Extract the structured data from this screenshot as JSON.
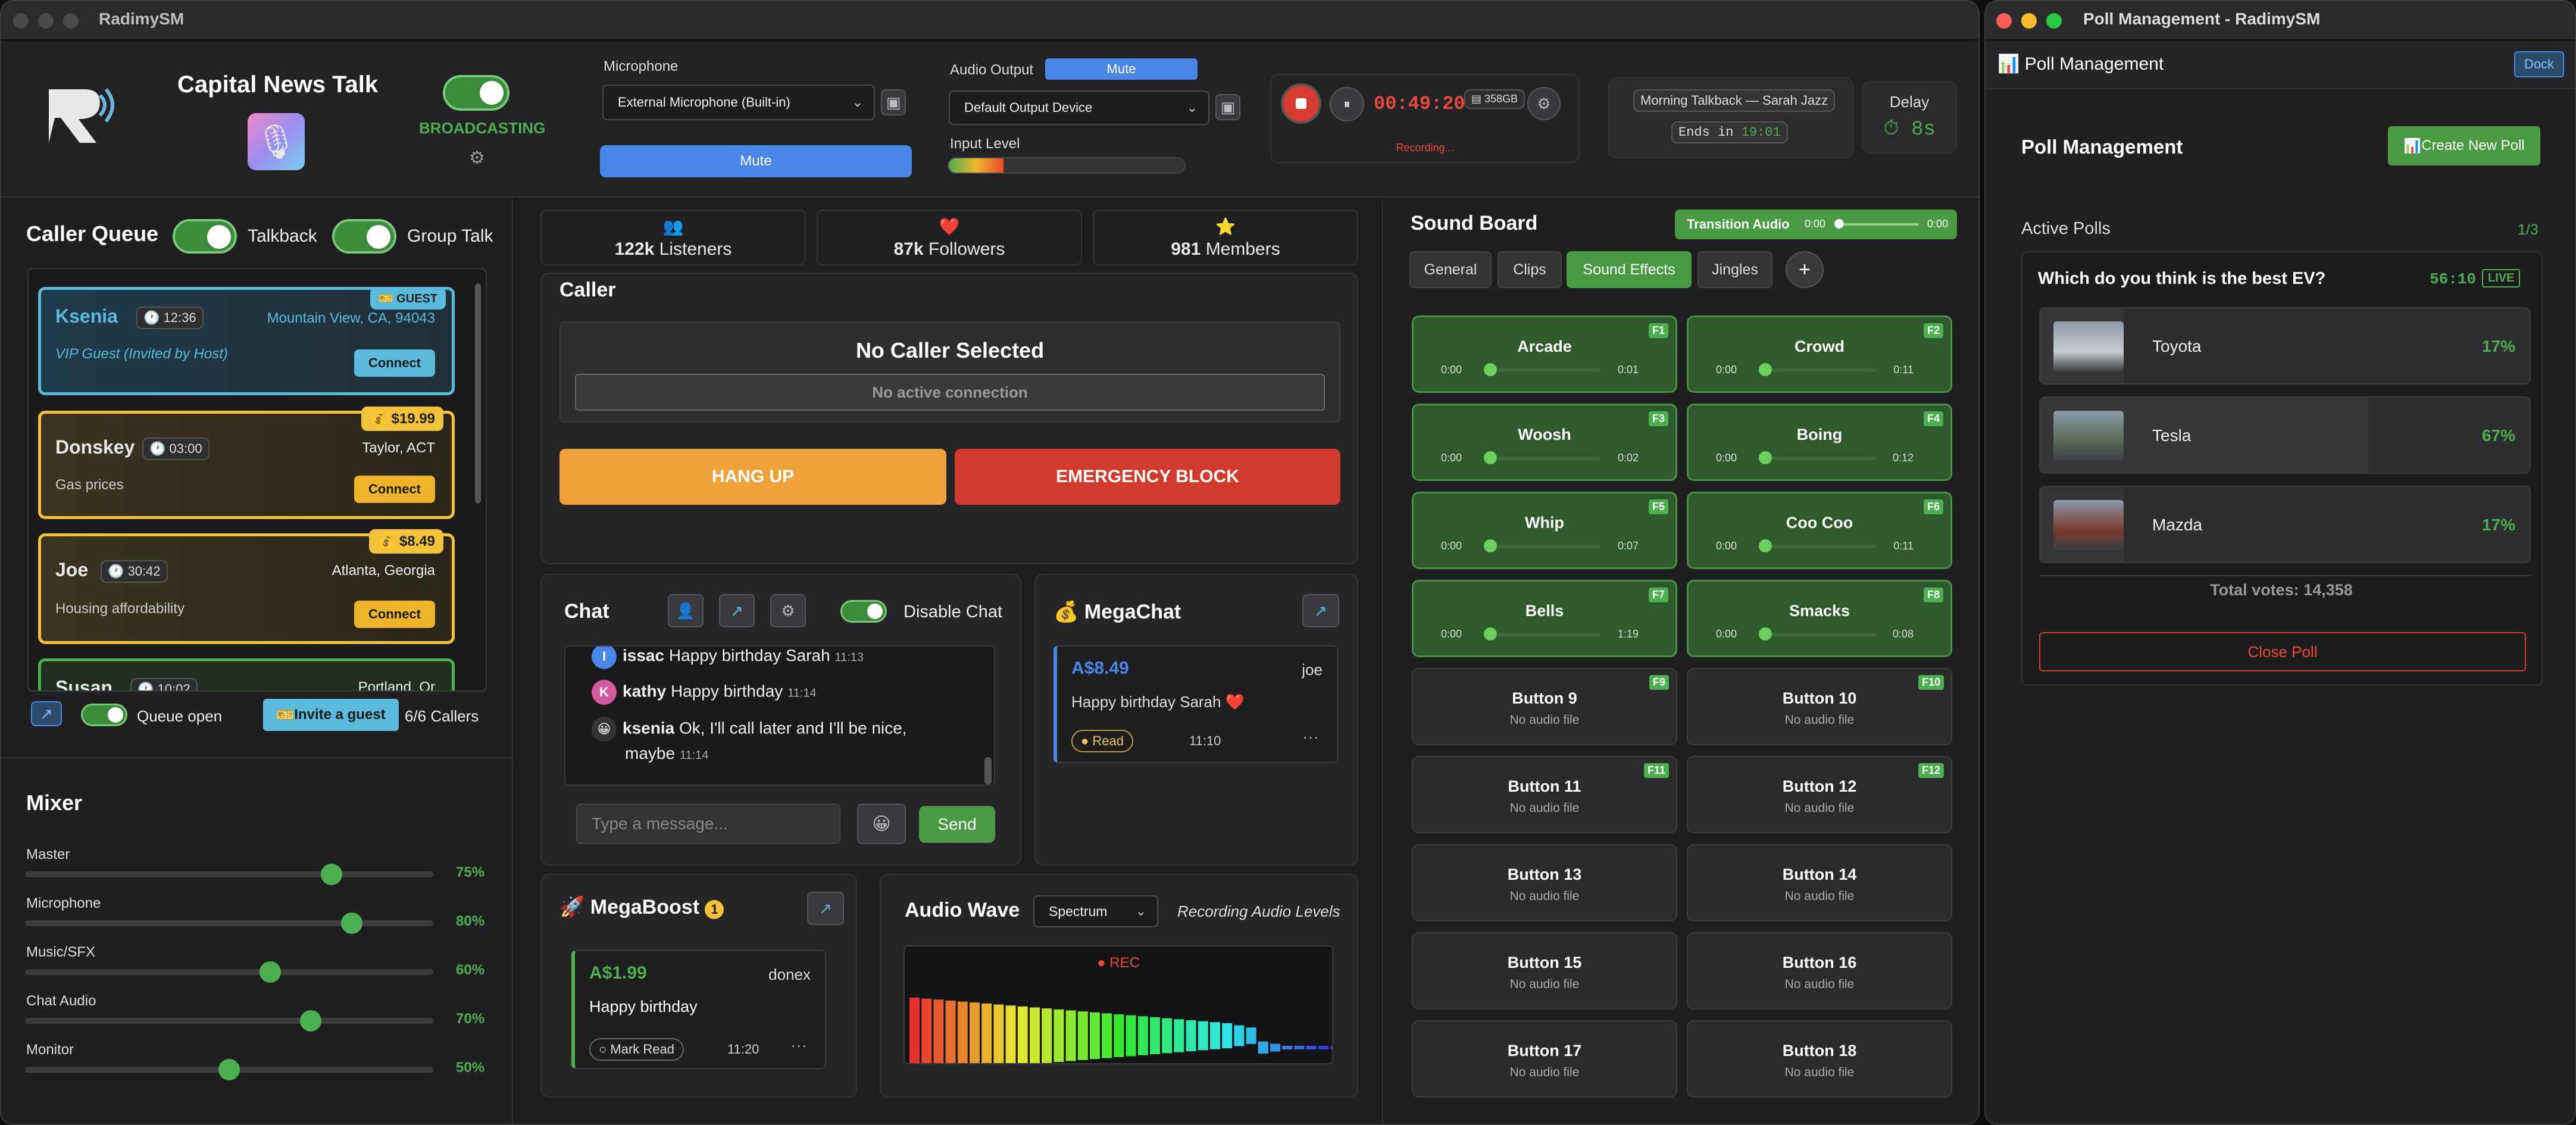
{
  "app": {
    "title": "RadimySM"
  },
  "header": {
    "station_name": "Capital News Talk",
    "broadcast_status": "BROADCASTING",
    "microphone_label": "Microphone",
    "microphone_value": "External Microphone (Built-in)",
    "mic_mute": "Mute",
    "output_label": "Audio Output",
    "output_mute": "Mute",
    "output_value": "Default Output Device",
    "input_level_label": "Input Level",
    "timer": "00:49:20",
    "storage": "358GB",
    "recording": "Recording...",
    "show_name": "Morning Talkback — Sarah Jazz",
    "ends_in_label": "Ends in",
    "ends_in_time": "19:01",
    "delay_label": "Delay",
    "delay_value": "8s"
  },
  "queue": {
    "title": "Caller Queue",
    "talkback": "Talkback",
    "group_talk": "Group Talk",
    "callers": [
      {
        "name": "Ksenia",
        "time": "12:36",
        "location": "Mountain View, CA, 94043",
        "note": "VIP Guest (Invited by Host)",
        "badge": "GUEST",
        "action": "Connect"
      },
      {
        "name": "Donskey",
        "time": "03:00",
        "location": "Taylor, ACT",
        "note": "Gas prices",
        "badge": "$19.99",
        "action": "Connect"
      },
      {
        "name": "Joe",
        "time": "30:42",
        "location": "Atlanta, Georgia",
        "note": "Housing affordability",
        "badge": "$8.49",
        "action": "Connect"
      },
      {
        "name": "Susan",
        "time": "10:02",
        "location": "Portland, Or"
      }
    ],
    "queue_open": "Queue open",
    "invite": "Invite a guest",
    "callers_count": "6/6 Callers"
  },
  "mixer": {
    "title": "Mixer",
    "channels": [
      {
        "label": "Master",
        "value": "75%",
        "level": 0.75
      },
      {
        "label": "Microphone",
        "value": "80%",
        "level": 0.8
      },
      {
        "label": "Music/SFX",
        "value": "60%",
        "level": 0.6
      },
      {
        "label": "Chat Audio",
        "value": "70%",
        "level": 0.7
      },
      {
        "label": "Monitor",
        "value": "50%",
        "level": 0.5
      }
    ]
  },
  "stats": {
    "listeners_value": "122k",
    "listeners_label": "Listeners",
    "followers_value": "87k",
    "followers_label": "Followers",
    "members_value": "981",
    "members_label": "Members"
  },
  "caller_panel": {
    "title": "Caller",
    "status": "No Caller Selected",
    "connection": "No active connection",
    "hang_up": "HANG UP",
    "block": "EMERGENCY BLOCK"
  },
  "chat": {
    "title": "Chat",
    "disable": "Disable Chat",
    "placeholder": "Type a message...",
    "send": "Send",
    "messages": [
      {
        "initial": "I",
        "user": "issac",
        "text": "Happy birthday Sarah",
        "time": "11:13"
      },
      {
        "initial": "K",
        "user": "kathy",
        "text": "Happy birthday",
        "time": "11:14"
      },
      {
        "initial": "😀",
        "user": "ksenia",
        "text": "Ok, I'll call later and I'll be nice,",
        "text2": "maybe",
        "time": "11:14"
      }
    ]
  },
  "megachat": {
    "title": "MegaChat",
    "amount": "A$8.49",
    "user": "joe",
    "text": "Happy birthday Sarah ❤️",
    "status": "Read",
    "time": "11:10",
    "more": "···"
  },
  "megaboost": {
    "title": "MegaBoost",
    "count": "1",
    "amount": "A$1.99",
    "user": "donex",
    "text": "Happy birthday",
    "action": "Mark Read",
    "time": "11:20",
    "more": "···"
  },
  "audiowave": {
    "title": "Audio Wave",
    "mode": "Spectrum",
    "subtitle": "Recording Audio Levels",
    "rec": "REC"
  },
  "soundboard": {
    "title": "Sound Board",
    "transition": "Transition Audio",
    "tr_start": "0:00",
    "tr_end": "0:00",
    "tabs": [
      "General",
      "Clips",
      "Sound Effects",
      "Jingles"
    ],
    "add": "+",
    "active_tab": "Sound Effects",
    "pads": [
      {
        "name": "Arcade",
        "fkey": "F1",
        "start": "0:00",
        "end": "0:01",
        "active": true
      },
      {
        "name": "Crowd",
        "fkey": "F2",
        "start": "0:00",
        "end": "0:11",
        "active": true
      },
      {
        "name": "Woosh",
        "fkey": "F3",
        "start": "0:00",
        "end": "0:02",
        "active": true
      },
      {
        "name": "Boing",
        "fkey": "F4",
        "start": "0:00",
        "end": "0:12",
        "active": true
      },
      {
        "name": "Whip",
        "fkey": "F5",
        "start": "0:00",
        "end": "0:07",
        "active": true
      },
      {
        "name": "Coo Coo",
        "fkey": "F6",
        "start": "0:00",
        "end": "0:11",
        "active": true
      },
      {
        "name": "Bells",
        "fkey": "F7",
        "start": "0:00",
        "end": "1:19",
        "active": true
      },
      {
        "name": "Smacks",
        "fkey": "F8",
        "start": "0:00",
        "end": "0:08",
        "active": true
      },
      {
        "name": "Button 9",
        "fkey": "F9",
        "empty": "No audio file"
      },
      {
        "name": "Button 10",
        "fkey": "F10",
        "empty": "No audio file"
      },
      {
        "name": "Button 11",
        "fkey": "F11",
        "empty": "No audio file"
      },
      {
        "name": "Button 12",
        "fkey": "F12",
        "empty": "No audio file"
      },
      {
        "name": "Button 13",
        "empty": "No audio file"
      },
      {
        "name": "Button 14",
        "empty": "No audio file"
      },
      {
        "name": "Button 15",
        "empty": "No audio file"
      },
      {
        "name": "Button 16",
        "empty": "No audio file"
      },
      {
        "name": "Button 17",
        "empty": "No audio file"
      },
      {
        "name": "Button 18",
        "empty": "No audio file"
      }
    ]
  },
  "poll": {
    "window_title": "Poll Management - RadimySM",
    "header": "Poll Management",
    "dock": "Dock",
    "section_title": "Poll Management",
    "create": "Create New Poll",
    "active_label": "Active Polls",
    "active_count": "1/3",
    "question": "Which do you think is the best EV?",
    "timer": "56:10",
    "live": "LIVE",
    "options": [
      {
        "name": "Toyota",
        "percent": "17%",
        "share": 0.17
      },
      {
        "name": "Tesla",
        "percent": "67%",
        "share": 0.67
      },
      {
        "name": "Mazda",
        "percent": "17%",
        "share": 0.17
      }
    ],
    "total": "Total votes: 14,358",
    "close": "Close Poll"
  }
}
